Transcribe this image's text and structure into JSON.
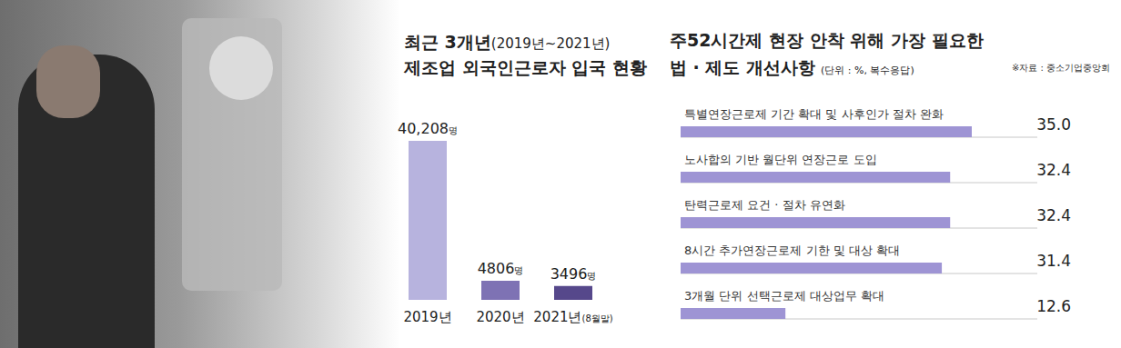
{
  "chart_data": [
    {
      "type": "bar",
      "title": [
        "최근 3개년(2019년~2021년)",
        "제조업 외국인근로자 입국 현황"
      ],
      "categories": [
        "2019년",
        "2020년",
        "2021년(8월말)"
      ],
      "values": [
        40208,
        4806,
        3496
      ],
      "value_labels": [
        "40,208명",
        "4806명",
        "3496명"
      ],
      "colors": [
        "#b7b3de",
        "#7e72b4",
        "#56488b"
      ],
      "data_labels": true,
      "tick_labels": "x"
    },
    {
      "type": "bar",
      "orientation": "horizontal",
      "title": [
        "주52시간제 현장 안착 위해 가장 필요한",
        "법 · 제도 개선사항"
      ],
      "subtitle": "(단위 : %, 복수응답)",
      "annotations": [
        "※자료 : 중소기업중앙회"
      ],
      "categories": [
        "특별연장근로제 기간 확대 및 사후인가 절차 완화",
        "노사합의 기반 월단위 연장근로 도입",
        "탄력근로제 요건 · 절차 유연화",
        "8시간 추가연장근로제 기한 및 대상 확대",
        "3개월 단위 선택근로제 대상업무 확대"
      ],
      "values": [
        35.0,
        32.4,
        32.4,
        31.4,
        12.6
      ],
      "value_labels": [
        "35.0",
        "32.4",
        "32.4",
        "31.4",
        "12.6"
      ],
      "color": "#9e94d4",
      "data_labels": true,
      "tick_labels": "y"
    }
  ]
}
